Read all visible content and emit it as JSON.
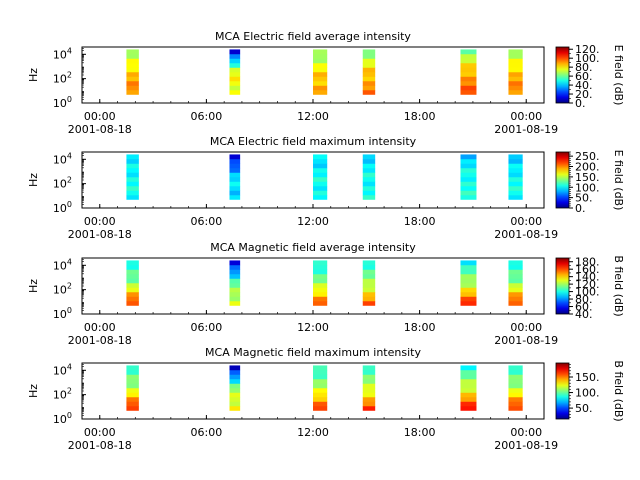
{
  "chart_data": [
    {
      "type": "heatmap",
      "title": "MCA  Electric field average intensity",
      "ylabel": "Hz",
      "colorbar_label": "E field (dB)",
      "colorbar_ticks": [
        "0.",
        "20.",
        "40.",
        "60.",
        "80.",
        "100.",
        "120."
      ],
      "colorbar_range": [
        0,
        125
      ],
      "ylim_log10": [
        0,
        4.6
      ],
      "yticks": [
        {
          "base": "10",
          "exp": "0"
        },
        {
          "base": "10",
          "exp": "2"
        },
        {
          "base": "10",
          "exp": "4"
        }
      ],
      "data_band_log10": [
        0.7,
        4.4
      ],
      "bursts": [
        {
          "start_h": 1.5,
          "end_h": 2.2,
          "center_db": 85,
          "top_db": 62,
          "bottom_db": 95
        },
        {
          "start_h": 7.3,
          "end_h": 7.9,
          "center_db": 78,
          "top_db": 5,
          "bottom_db": 75
        },
        {
          "start_h": 12.0,
          "end_h": 12.8,
          "center_db": 82,
          "top_db": 60,
          "bottom_db": 92
        },
        {
          "start_h": 14.8,
          "end_h": 15.5,
          "center_db": 85,
          "top_db": 60,
          "bottom_db": 95
        },
        {
          "start_h": 20.3,
          "end_h": 21.2,
          "center_db": 88,
          "top_db": 60,
          "bottom_db": 100
        },
        {
          "start_h": 23.0,
          "end_h": 23.8,
          "center_db": 86,
          "top_db": 62,
          "bottom_db": 95
        }
      ]
    },
    {
      "type": "heatmap",
      "title": "MCA  Electric field maximum intensity",
      "ylabel": "Hz",
      "colorbar_label": "E field (dB)",
      "colorbar_ticks": [
        "0.",
        "50.",
        "100.",
        "150.",
        "200.",
        "250."
      ],
      "colorbar_range": [
        0,
        270
      ],
      "ylim_log10": [
        0,
        4.6
      ],
      "yticks": [
        {
          "base": "10",
          "exp": "0"
        },
        {
          "base": "10",
          "exp": "2"
        },
        {
          "base": "10",
          "exp": "4"
        }
      ],
      "data_band_log10": [
        0.7,
        4.4
      ],
      "bursts": [
        {
          "start_h": 1.5,
          "end_h": 2.2,
          "center_db": 105,
          "top_db": 90,
          "bottom_db": 105
        },
        {
          "start_h": 7.3,
          "end_h": 7.9,
          "center_db": 95,
          "top_db": 20,
          "bottom_db": 90
        },
        {
          "start_h": 12.0,
          "end_h": 12.8,
          "center_db": 105,
          "top_db": 90,
          "bottom_db": 105
        },
        {
          "start_h": 14.8,
          "end_h": 15.5,
          "center_db": 105,
          "top_db": 90,
          "bottom_db": 105
        },
        {
          "start_h": 20.3,
          "end_h": 21.2,
          "center_db": 108,
          "top_db": 85,
          "bottom_db": 108
        },
        {
          "start_h": 23.0,
          "end_h": 23.8,
          "center_db": 105,
          "top_db": 80,
          "bottom_db": 105
        }
      ]
    },
    {
      "type": "heatmap",
      "title": "MCA  Magnetic field average intensity",
      "ylabel": "Hz",
      "colorbar_label": "B field (dB)",
      "colorbar_ticks": [
        "40.",
        "60.",
        "80.",
        "100.",
        "120.",
        "140.",
        "160.",
        "180."
      ],
      "colorbar_range": [
        40,
        190
      ],
      "ylim_log10": [
        0,
        4.6
      ],
      "yticks": [
        {
          "base": "10",
          "exp": "0"
        },
        {
          "base": "10",
          "exp": "2"
        },
        {
          "base": "10",
          "exp": "4"
        }
      ],
      "data_band_log10": [
        0.7,
        4.4
      ],
      "bursts": [
        {
          "start_h": 1.5,
          "end_h": 2.2,
          "center_db": 118,
          "top_db": 95,
          "bottom_db": 170
        },
        {
          "start_h": 7.3,
          "end_h": 7.9,
          "center_db": 112,
          "top_db": 50,
          "bottom_db": 130
        },
        {
          "start_h": 12.0,
          "end_h": 12.8,
          "center_db": 118,
          "top_db": 95,
          "bottom_db": 165
        },
        {
          "start_h": 14.8,
          "end_h": 15.5,
          "center_db": 120,
          "top_db": 100,
          "bottom_db": 160
        },
        {
          "start_h": 20.3,
          "end_h": 21.2,
          "center_db": 122,
          "top_db": 95,
          "bottom_db": 170
        },
        {
          "start_h": 23.0,
          "end_h": 23.8,
          "center_db": 118,
          "top_db": 95,
          "bottom_db": 168
        }
      ]
    },
    {
      "type": "heatmap",
      "title": "MCA  Magnetic field maximum intensity",
      "ylabel": "Hz",
      "colorbar_label": "B field (dB)",
      "colorbar_ticks": [
        "50.",
        "100.",
        "150."
      ],
      "colorbar_range": [
        15,
        195
      ],
      "ylim_log10": [
        0,
        4.6
      ],
      "yticks": [
        {
          "base": "10",
          "exp": "0"
        },
        {
          "base": "10",
          "exp": "2"
        },
        {
          "base": "10",
          "exp": "4"
        }
      ],
      "data_band_log10": [
        0.7,
        4.4
      ],
      "bursts": [
        {
          "start_h": 1.5,
          "end_h": 2.2,
          "center_db": 115,
          "top_db": 85,
          "bottom_db": 175
        },
        {
          "start_h": 7.3,
          "end_h": 7.9,
          "center_db": 110,
          "top_db": 20,
          "bottom_db": 130
        },
        {
          "start_h": 12.0,
          "end_h": 12.8,
          "center_db": 115,
          "top_db": 85,
          "bottom_db": 170
        },
        {
          "start_h": 14.8,
          "end_h": 15.5,
          "center_db": 118,
          "top_db": 90,
          "bottom_db": 165
        },
        {
          "start_h": 20.3,
          "end_h": 21.2,
          "center_db": 120,
          "top_db": 85,
          "bottom_db": 175
        },
        {
          "start_h": 23.0,
          "end_h": 23.8,
          "center_db": 115,
          "top_db": 85,
          "bottom_db": 172
        }
      ]
    }
  ],
  "x_axis": {
    "range_hours": [
      -1,
      25
    ],
    "major_ticks": [
      {
        "hour": 0,
        "label": "00:00"
      },
      {
        "hour": 6,
        "label": "06:00"
      },
      {
        "hour": 12,
        "label": "12:00"
      },
      {
        "hour": 18,
        "label": "18:00"
      },
      {
        "hour": 24,
        "label": "00:00"
      }
    ],
    "minor_tick_step_hours": 1,
    "date_labels": [
      {
        "hour": 0,
        "label": "2001-08-18"
      },
      {
        "hour": 24,
        "label": "2001-08-19"
      }
    ]
  }
}
